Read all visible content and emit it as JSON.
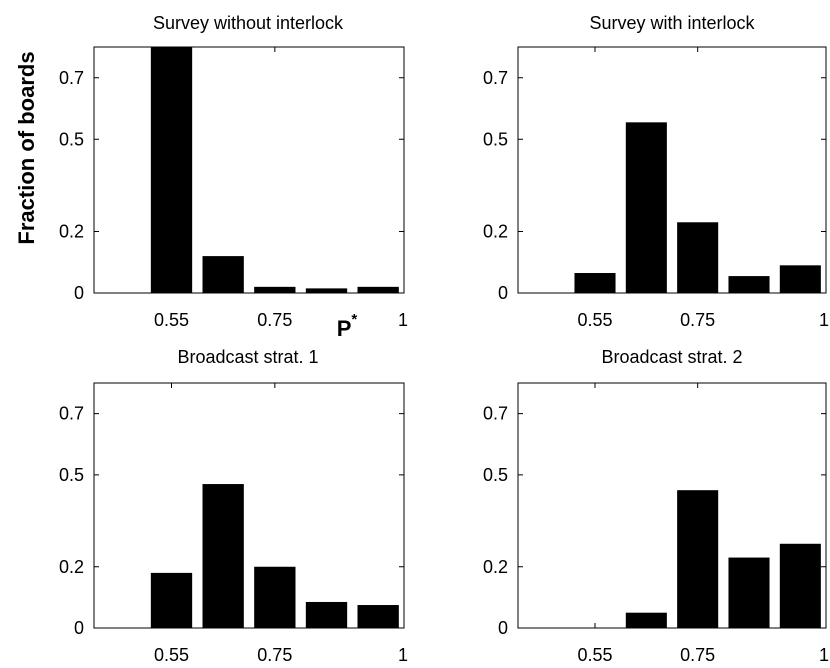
{
  "ylabel": "Fraction of boards",
  "xlabel": {
    "base": "P",
    "sup": "*"
  },
  "chart_data": [
    {
      "type": "bar",
      "title": "Survey without interlock",
      "x": [
        0.55,
        0.65,
        0.75,
        0.85,
        0.95
      ],
      "values": [
        0.8,
        0.12,
        0.02,
        0.015,
        0.02
      ],
      "xticks": [
        0.55,
        0.75,
        1
      ],
      "xtick_labels": [
        "0.55",
        "0.75",
        "1"
      ],
      "yticks": [
        0,
        0.2,
        0.5,
        0.7
      ],
      "ytick_labels": [
        "0",
        "0.2",
        "0.5",
        "0.7"
      ],
      "xlim": [
        0.4,
        1.0
      ],
      "ylim": [
        0,
        0.8
      ],
      "color": "#000000",
      "grid": false
    },
    {
      "type": "bar",
      "title": "Survey with interlock",
      "x": [
        0.55,
        0.65,
        0.75,
        0.85,
        0.95
      ],
      "values": [
        0.065,
        0.555,
        0.23,
        0.055,
        0.09
      ],
      "xticks": [
        0.55,
        0.75,
        1
      ],
      "xtick_labels": [
        "0.55",
        "0.75",
        "1"
      ],
      "yticks": [
        0,
        0.2,
        0.5,
        0.7
      ],
      "ytick_labels": [
        "0",
        "0.2",
        "0.5",
        "0.7"
      ],
      "xlim": [
        0.4,
        1.0
      ],
      "ylim": [
        0,
        0.8
      ],
      "color": "#000000",
      "grid": false
    },
    {
      "type": "bar",
      "title": "Broadcast strat. 1",
      "x": [
        0.55,
        0.65,
        0.75,
        0.85,
        0.95
      ],
      "values": [
        0.18,
        0.47,
        0.2,
        0.085,
        0.075
      ],
      "xticks": [
        0.55,
        0.75,
        1
      ],
      "xtick_labels": [
        "0.55",
        "0.75",
        "1"
      ],
      "yticks": [
        0,
        0.2,
        0.5,
        0.7
      ],
      "ytick_labels": [
        "0",
        "0.2",
        "0.5",
        "0.7"
      ],
      "xlim": [
        0.4,
        1.0
      ],
      "ylim": [
        0,
        0.8
      ],
      "color": "#000000",
      "grid": false
    },
    {
      "type": "bar",
      "title": "Broadcast strat. 2",
      "x": [
        0.55,
        0.65,
        0.75,
        0.85,
        0.95
      ],
      "values": [
        0,
        0.05,
        0.45,
        0.23,
        0.275
      ],
      "xticks": [
        0.55,
        0.75,
        1
      ],
      "xtick_labels": [
        "0.55",
        "0.75",
        "1"
      ],
      "yticks": [
        0,
        0.2,
        0.5,
        0.7
      ],
      "ytick_labels": [
        "0",
        "0.2",
        "0.5",
        "0.7"
      ],
      "xlim": [
        0.4,
        1.0
      ],
      "ylim": [
        0,
        0.8
      ],
      "color": "#000000",
      "grid": false
    }
  ]
}
